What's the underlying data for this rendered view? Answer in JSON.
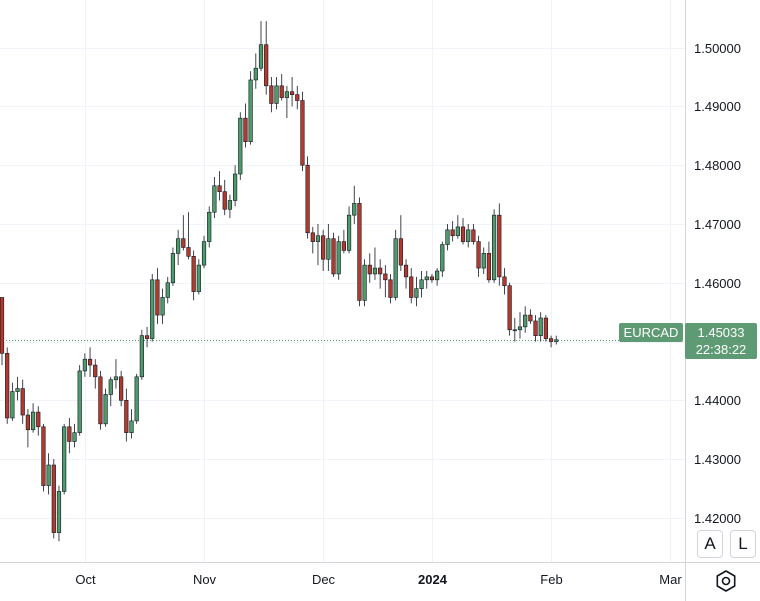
{
  "chart_data": {
    "type": "candlestick",
    "symbol": "EURCAD",
    "last_price": "1.45033",
    "countdown": "22:38:22",
    "colors": {
      "up": "#4e9a6b",
      "down": "#b03a2e",
      "grid": "#f0f3fa",
      "axis": "#131722",
      "label_bg": "#5e9b74"
    },
    "y_ticks": [
      "1.50000",
      "1.49000",
      "1.48000",
      "1.47000",
      "1.46000",
      "1.45000",
      "1.44000",
      "1.43000",
      "1.42000"
    ],
    "y_range": [
      1.4125,
      1.5081
    ],
    "x_ticks": [
      {
        "label": "Oct",
        "bar": 16
      },
      {
        "label": "Nov",
        "bar": 39
      },
      {
        "label": "Dec",
        "bar": 62
      },
      {
        "label": "2024",
        "bar": 83
      },
      {
        "label": "Feb",
        "bar": 106
      },
      {
        "label": "Mar",
        "bar": 129
      }
    ],
    "grid": true,
    "candles": [
      [
        1.4575,
        1.4575,
        1.446,
        1.448
      ],
      [
        1.448,
        1.449,
        1.436,
        1.437
      ],
      [
        1.437,
        1.443,
        1.4365,
        1.4415
      ],
      [
        1.4415,
        1.444,
        1.44,
        1.442
      ],
      [
        1.442,
        1.4435,
        1.436,
        1.4375
      ],
      [
        1.4375,
        1.4385,
        1.432,
        1.435
      ],
      [
        1.435,
        1.4395,
        1.4345,
        1.438
      ],
      [
        1.438,
        1.439,
        1.434,
        1.4355
      ],
      [
        1.4355,
        1.436,
        1.4245,
        1.4255
      ],
      [
        1.4255,
        1.431,
        1.424,
        1.429
      ],
      [
        1.429,
        1.43,
        1.4165,
        1.4175
      ],
      [
        1.4175,
        1.4255,
        1.416,
        1.4245
      ],
      [
        1.4245,
        1.436,
        1.424,
        1.4355
      ],
      [
        1.4355,
        1.437,
        1.431,
        1.433
      ],
      [
        1.433,
        1.436,
        1.432,
        1.4345
      ],
      [
        1.4345,
        1.446,
        1.434,
        1.445
      ],
      [
        1.445,
        1.448,
        1.444,
        1.447
      ],
      [
        1.447,
        1.449,
        1.444,
        1.446
      ],
      [
        1.446,
        1.447,
        1.442,
        1.444
      ],
      [
        1.444,
        1.445,
        1.435,
        1.436
      ],
      [
        1.436,
        1.442,
        1.4355,
        1.441
      ],
      [
        1.441,
        1.444,
        1.439,
        1.4435
      ],
      [
        1.4435,
        1.447,
        1.442,
        1.444
      ],
      [
        1.444,
        1.445,
        1.439,
        1.44
      ],
      [
        1.44,
        1.442,
        1.433,
        1.4345
      ],
      [
        1.4345,
        1.4385,
        1.4335,
        1.4365
      ],
      [
        1.4365,
        1.4445,
        1.436,
        1.444
      ],
      [
        1.444,
        1.452,
        1.4435,
        1.451
      ],
      [
        1.451,
        1.4525,
        1.449,
        1.4505
      ],
      [
        1.4505,
        1.4615,
        1.45,
        1.4605
      ],
      [
        1.4605,
        1.4625,
        1.453,
        1.4545
      ],
      [
        1.4545,
        1.459,
        1.453,
        1.4575
      ],
      [
        1.4575,
        1.461,
        1.4565,
        1.46
      ],
      [
        1.46,
        1.466,
        1.4595,
        1.465
      ],
      [
        1.465,
        1.469,
        1.463,
        1.4675
      ],
      [
        1.4675,
        1.4715,
        1.4655,
        1.466
      ],
      [
        1.466,
        1.472,
        1.464,
        1.4645
      ],
      [
        1.4645,
        1.4655,
        1.457,
        1.4585
      ],
      [
        1.4585,
        1.464,
        1.458,
        1.463
      ],
      [
        1.463,
        1.468,
        1.4625,
        1.467
      ],
      [
        1.467,
        1.473,
        1.466,
        1.472
      ],
      [
        1.472,
        1.478,
        1.471,
        1.4765
      ],
      [
        1.4765,
        1.479,
        1.474,
        1.4755
      ],
      [
        1.4755,
        1.4775,
        1.4715,
        1.4725
      ],
      [
        1.4725,
        1.475,
        1.471,
        1.474
      ],
      [
        1.474,
        1.48,
        1.473,
        1.4785
      ],
      [
        1.4785,
        1.489,
        1.4775,
        1.488
      ],
      [
        1.488,
        1.4905,
        1.483,
        1.484
      ],
      [
        1.484,
        1.496,
        1.4835,
        1.4945
      ],
      [
        1.4945,
        1.499,
        1.493,
        1.4965
      ],
      [
        1.4965,
        1.5045,
        1.496,
        1.5005
      ],
      [
        1.5005,
        1.5045,
        1.492,
        1.4935
      ],
      [
        1.4935,
        1.495,
        1.489,
        1.4905
      ],
      [
        1.4905,
        1.495,
        1.4895,
        1.4935
      ],
      [
        1.4935,
        1.4955,
        1.491,
        1.4915
      ],
      [
        1.4915,
        1.4935,
        1.488,
        1.4925
      ],
      [
        1.4925,
        1.495,
        1.49,
        1.492
      ],
      [
        1.492,
        1.4935,
        1.4895,
        1.491
      ],
      [
        1.491,
        1.4925,
        1.479,
        1.48
      ],
      [
        1.48,
        1.4815,
        1.4675,
        1.4685
      ],
      [
        1.4685,
        1.4695,
        1.465,
        1.467
      ],
      [
        1.467,
        1.47,
        1.463,
        1.468
      ],
      [
        1.468,
        1.469,
        1.462,
        1.464
      ],
      [
        1.464,
        1.47,
        1.462,
        1.4675
      ],
      [
        1.4675,
        1.4685,
        1.461,
        1.4615
      ],
      [
        1.4615,
        1.468,
        1.4605,
        1.467
      ],
      [
        1.467,
        1.469,
        1.465,
        1.4655
      ],
      [
        1.4655,
        1.473,
        1.465,
        1.4715
      ],
      [
        1.4715,
        1.4765,
        1.47,
        1.4735
      ],
      [
        1.4735,
        1.4745,
        1.456,
        1.457
      ],
      [
        1.457,
        1.464,
        1.456,
        1.463
      ],
      [
        1.463,
        1.465,
        1.46,
        1.4615
      ],
      [
        1.4615,
        1.466,
        1.4605,
        1.4625
      ],
      [
        1.4625,
        1.464,
        1.459,
        1.4615
      ],
      [
        1.4615,
        1.463,
        1.4575,
        1.4605
      ],
      [
        1.4605,
        1.4615,
        1.4565,
        1.4575
      ],
      [
        1.4575,
        1.469,
        1.457,
        1.4675
      ],
      [
        1.4675,
        1.4715,
        1.462,
        1.463
      ],
      [
        1.463,
        1.464,
        1.459,
        1.461
      ],
      [
        1.461,
        1.4625,
        1.4565,
        1.4575
      ],
      [
        1.4575,
        1.461,
        1.456,
        1.459
      ],
      [
        1.459,
        1.462,
        1.4575,
        1.4605
      ],
      [
        1.4605,
        1.462,
        1.459,
        1.461
      ],
      [
        1.461,
        1.4615,
        1.46,
        1.4605
      ],
      [
        1.4605,
        1.4625,
        1.4595,
        1.462
      ],
      [
        1.462,
        1.467,
        1.461,
        1.4665
      ],
      [
        1.4665,
        1.47,
        1.4655,
        1.469
      ],
      [
        1.469,
        1.4705,
        1.467,
        1.468
      ],
      [
        1.468,
        1.4715,
        1.4675,
        1.4695
      ],
      [
        1.4695,
        1.471,
        1.4665,
        1.467
      ],
      [
        1.467,
        1.47,
        1.466,
        1.469
      ],
      [
        1.469,
        1.47,
        1.4665,
        1.467
      ],
      [
        1.467,
        1.468,
        1.461,
        1.4625
      ],
      [
        1.4625,
        1.466,
        1.4615,
        1.465
      ],
      [
        1.465,
        1.467,
        1.46,
        1.4605
      ],
      [
        1.4605,
        1.4725,
        1.46,
        1.4715
      ],
      [
        1.4715,
        1.4735,
        1.4595,
        1.461
      ],
      [
        1.461,
        1.4625,
        1.458,
        1.4595
      ],
      [
        1.4595,
        1.46,
        1.451,
        1.452
      ],
      [
        1.452,
        1.454,
        1.45,
        1.452
      ],
      [
        1.452,
        1.455,
        1.4505,
        1.4525
      ],
      [
        1.4525,
        1.456,
        1.4515,
        1.4545
      ],
      [
        1.4545,
        1.4555,
        1.453,
        1.4535
      ],
      [
        1.4535,
        1.4545,
        1.45,
        1.451
      ],
      [
        1.451,
        1.455,
        1.45,
        1.454
      ],
      [
        1.454,
        1.4545,
        1.45,
        1.4505
      ],
      [
        1.4505,
        1.451,
        1.449,
        1.45
      ],
      [
        1.45,
        1.451,
        1.4495,
        1.4503
      ]
    ]
  },
  "controls": {
    "auto_label": "A",
    "log_label": "L"
  }
}
